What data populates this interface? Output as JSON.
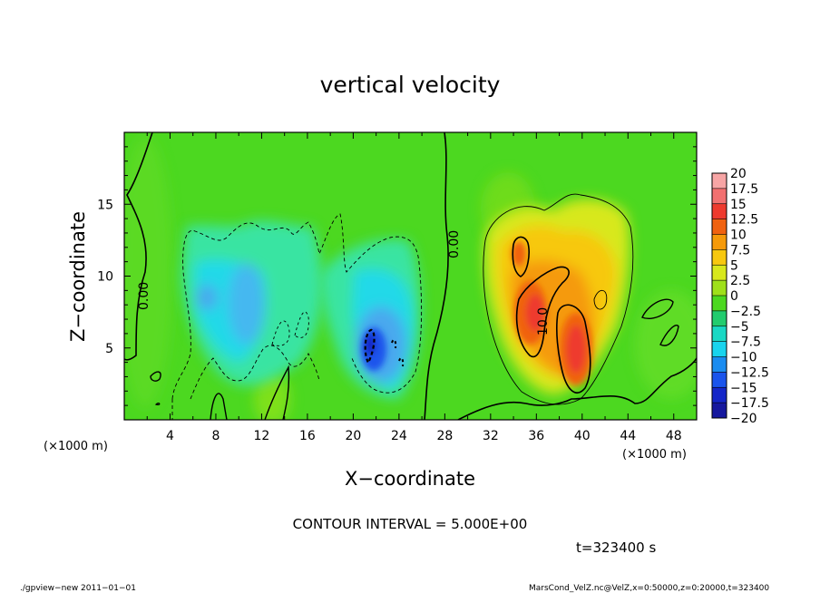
{
  "title": "vertical velocity",
  "xlabel": "X−coordinate",
  "ylabel": "Z−coordinate",
  "x_unit": "(×1000 m)",
  "y_unit": "(×1000 m)",
  "contour_interval": "CONTOUR INTERVAL = 5.000E+00",
  "time_label": "t=323400 s",
  "footer_left": "./gpview−new  2011−01−01",
  "footer_right": "MarsCond_VelZ.nc@VelZ,x=0:50000,z=0:20000,t=323400",
  "contour_labels": [
    "0.00",
    "0.00",
    "10.0"
  ],
  "chart_data": {
    "type": "heatmap",
    "title": "vertical velocity",
    "xlabel": "X-coordinate",
    "ylabel": "Z-coordinate",
    "xlim": [
      0,
      50
    ],
    "ylim": [
      0,
      20
    ],
    "x_ticks": [
      4,
      8,
      12,
      16,
      20,
      24,
      28,
      32,
      36,
      40,
      44,
      48
    ],
    "y_ticks": [
      5,
      10,
      15
    ],
    "colorbar": {
      "levels": [
        "20",
        "17.5",
        "15",
        "12.5",
        "10",
        "7.5",
        "5",
        "2.5",
        "0",
        "−2.5",
        "−5",
        "−7.5",
        "−10",
        "−12.5",
        "−15",
        "−17.5",
        "−20"
      ],
      "colors": [
        "#f7a5a5",
        "#f27070",
        "#ee3a2e",
        "#f06210",
        "#f59a0a",
        "#f7c80f",
        "#d8e81c",
        "#9fe01a",
        "#4cd820",
        "#22cc6e",
        "#19d8c4",
        "#18d4ee",
        "#1a8cf0",
        "#1a54ec",
        "#1426c8",
        "#16189e",
        "#7a1ab8"
      ]
    },
    "features": [
      {
        "kind": "downdraft",
        "x": 11,
        "z": 7.5,
        "value": -7.5
      },
      {
        "kind": "downdraft",
        "x": 23,
        "z": 5,
        "value": -15
      },
      {
        "kind": "updraft",
        "x": 35,
        "z": 7.5,
        "value": 15
      },
      {
        "kind": "updraft",
        "x": 39,
        "z": 5,
        "value": 15
      }
    ]
  }
}
